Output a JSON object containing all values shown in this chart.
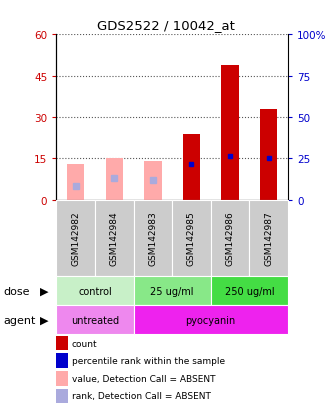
{
  "title": "GDS2522 / 10042_at",
  "samples": [
    "GSM142982",
    "GSM142984",
    "GSM142983",
    "GSM142985",
    "GSM142986",
    "GSM142987"
  ],
  "red_bars": [
    0,
    0,
    0,
    24,
    49,
    33
  ],
  "pink_bars": [
    13,
    15,
    14,
    0,
    0,
    0
  ],
  "blue_squares": [
    0,
    0,
    0,
    13,
    16,
    15
  ],
  "lightblue_squares": [
    5,
    8,
    7,
    0,
    0,
    0
  ],
  "ylim_left": [
    0,
    60
  ],
  "ylim_right": [
    0,
    100
  ],
  "yticks_left": [
    0,
    15,
    30,
    45,
    60
  ],
  "yticks_right": [
    0,
    25,
    50,
    75,
    100
  ],
  "yticklabels_left": [
    "0",
    "15",
    "30",
    "45",
    "60"
  ],
  "yticklabels_right": [
    "0",
    "25",
    "50",
    "75",
    "100%"
  ],
  "dose_labels": [
    [
      "control",
      0,
      2
    ],
    [
      "25 ug/ml",
      2,
      4
    ],
    [
      "250 ug/ml",
      4,
      6
    ]
  ],
  "agent_labels": [
    [
      "untreated",
      0,
      2
    ],
    [
      "pyocyanin",
      2,
      6
    ]
  ],
  "dose_colors": [
    "#c8f0c8",
    "#88e888",
    "#44dd44"
  ],
  "agent_colors": [
    "#ee88ee",
    "#ee22ee"
  ],
  "bar_width": 0.45,
  "red_color": "#cc0000",
  "pink_color": "#ffaaaa",
  "blue_color": "#0000cc",
  "lightblue_color": "#aaaadd",
  "grid_color": "#888888",
  "bg_color": "#ffffff"
}
